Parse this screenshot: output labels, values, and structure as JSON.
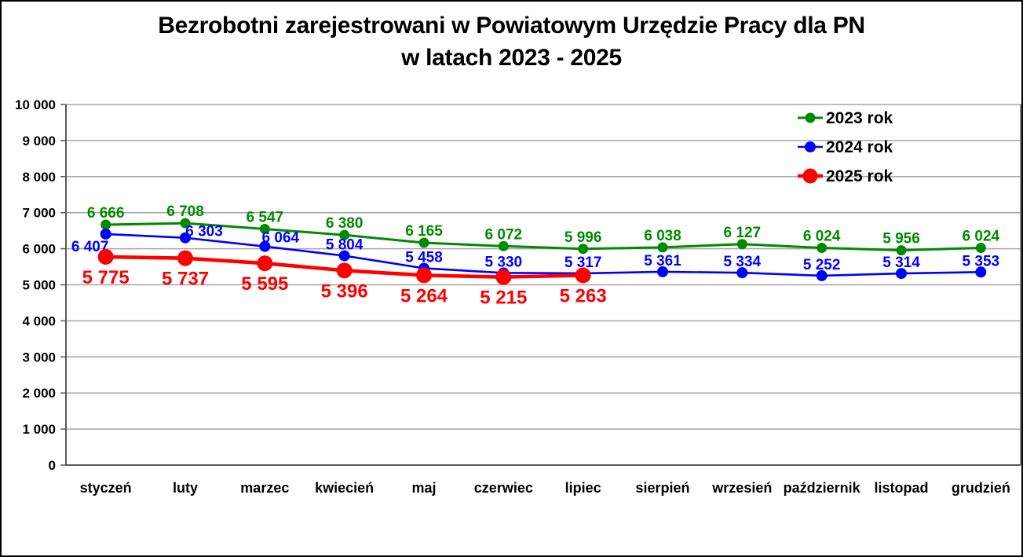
{
  "title": {
    "line1": "Bezrobotni zarejestrowani w Powiatowym Urzędzie Pracy dla PN",
    "line2": "w latach 2023 - 2025"
  },
  "chart_data": {
    "type": "line",
    "title": "Bezrobotni zarejestrowani w Powiatowym Urzędzie Pracy dla PN w latach 2023 - 2025",
    "categories": [
      "styczeń",
      "luty",
      "marzec",
      "kwiecień",
      "maj",
      "czerwiec",
      "lipiec",
      "sierpień",
      "wrzesień",
      "październik",
      "listopad",
      "grudzień"
    ],
    "series": [
      {
        "name": "2023 rok",
        "color": "#008A00",
        "values": [
          6666,
          6708,
          6547,
          6380,
          6165,
          6072,
          5996,
          6038,
          6127,
          6024,
          5956,
          6024
        ]
      },
      {
        "name": "2024 rok",
        "color": "#0000FF",
        "values": [
          6407,
          6303,
          6064,
          5804,
          5458,
          5330,
          5317,
          5361,
          5334,
          5252,
          5314,
          5353
        ]
      },
      {
        "name": "2025 rok",
        "color": "#FF0000",
        "values": [
          5775,
          5737,
          5595,
          5396,
          5264,
          5215,
          5263
        ]
      }
    ],
    "xlabel": "",
    "ylabel": "",
    "ylim": [
      0,
      10000
    ],
    "ytick_step": 1000,
    "grid": true,
    "legend_position": "upper-right",
    "data_labels": true,
    "number_format": "space-thousands"
  },
  "colors": {
    "background": "#FFFFFF",
    "page_border": "#000000",
    "gridline": "#A6A6A6",
    "axis": "#595959",
    "tick_label": "#000000",
    "legend_text": "#000000"
  }
}
